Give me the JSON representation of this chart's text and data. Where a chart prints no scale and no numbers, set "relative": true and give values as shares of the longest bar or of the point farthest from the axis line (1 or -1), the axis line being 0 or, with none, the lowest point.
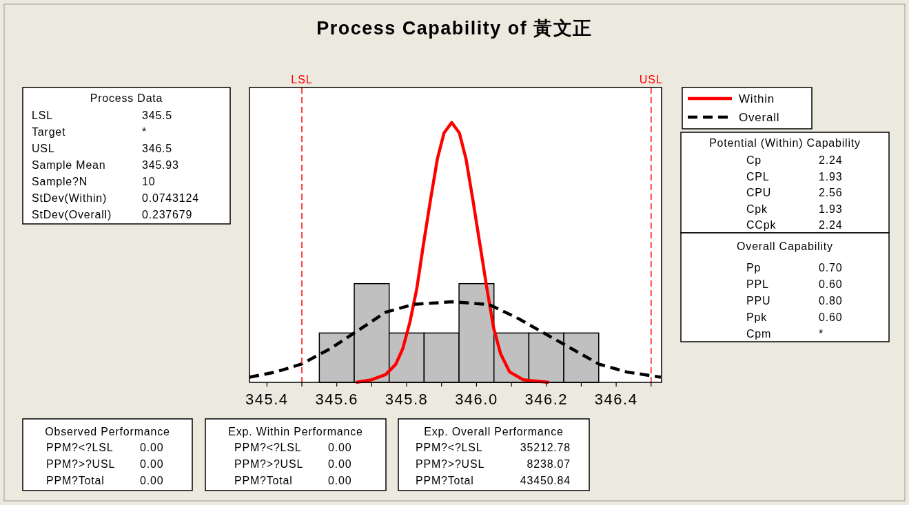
{
  "chart_data": {
    "type": "histogram",
    "title": "Process Capability of 黃文正",
    "relative": true,
    "bins": [
      345.55,
      345.65,
      345.75,
      345.85,
      345.95,
      346.05,
      346.15,
      346.25,
      346.35
    ],
    "values": [
      0.19,
      0.38,
      0.19,
      0.19,
      0.38,
      0.19,
      0.19,
      0.19
    ],
    "color": "#c0c0c0",
    "series": [
      {
        "name": "Within",
        "type": "line",
        "color": "#ff0000",
        "line_style": "solid",
        "x": [
          345.655,
          345.7,
          345.74,
          345.769,
          345.789,
          345.809,
          345.829,
          345.848,
          345.868,
          345.888,
          345.907,
          345.929,
          345.951,
          345.97,
          345.99,
          346.01,
          346.03,
          346.049,
          346.069,
          346.095,
          346.134,
          346.207
        ],
        "values": [
          0,
          0.01,
          0.03,
          0.07,
          0.13,
          0.23,
          0.36,
          0.53,
          0.7,
          0.86,
          0.96,
          1,
          0.96,
          0.86,
          0.7,
          0.53,
          0.36,
          0.21,
          0.11,
          0.04,
          0.01,
          0
        ]
      },
      {
        "name": "Overall",
        "type": "line",
        "color": "#000000",
        "line_style": "dashed",
        "x": [
          345.35,
          345.425,
          345.498,
          345.582,
          345.661,
          345.74,
          345.819,
          345.929,
          346.035,
          346.114,
          346.193,
          346.272,
          346.351,
          346.43,
          346.528
        ],
        "values": [
          0.02,
          0.04,
          0.07,
          0.13,
          0.2,
          0.27,
          0.3,
          0.31,
          0.3,
          0.25,
          0.19,
          0.13,
          0.07,
          0.04,
          0.02
        ]
      }
    ],
    "xlim": [
      345.35,
      346.53
    ],
    "xticks": [
      345.4,
      {
        "value": 345.5,
        "label": null
      },
      345.6,
      {
        "value": 345.7,
        "label": null
      },
      345.8,
      {
        "value": 345.9,
        "label": null
      },
      {
        "value": 346.0,
        "label": "346.0"
      },
      {
        "value": 346.1,
        "label": null
      },
      346.2,
      {
        "value": 346.3,
        "label": null
      },
      346.4,
      {
        "value": 346.5,
        "label": null
      }
    ],
    "ref_lines": [
      {
        "axis": "x",
        "value": 345.5,
        "label": "LSL",
        "color": "#ff0000",
        "line_style": "dashed"
      },
      {
        "axis": "x",
        "value": 346.5,
        "label": "USL",
        "color": "#ff0000",
        "line_style": "dashed"
      }
    ],
    "legend": "top right",
    "annotations": [
      "Process Data",
      "LSL",
      "345.5",
      "Target",
      "*",
      "USL",
      "346.5",
      "Sample Mean",
      "345.93",
      "Sample?N",
      "10",
      "StDev(Within)",
      "0.0743124",
      "StDev(Overall)",
      "0.237679",
      "Potential (Within) Capability",
      "Cp",
      "2.24",
      "CPL",
      "1.93",
      "CPU",
      "2.56",
      "Cpk",
      "1.93",
      "CCpk",
      "2.24",
      "Overall Capability",
      "Pp",
      "0.70",
      "PPL",
      "0.60",
      "PPU",
      "0.80",
      "Ppk",
      "0.60",
      "Cpm",
      "*",
      "Observed Performance",
      "PPM?<?LSL",
      "0.00",
      "PPM?>?USL",
      "0.00",
      "PPM?Total",
      "0.00",
      "Exp. Within Performance",
      "PPM?<?LSL",
      "0.00",
      "PPM?>?USL",
      "0.00",
      "PPM?Total",
      "0.00",
      "Exp. Overall Performance",
      "PPM?<?LSL",
      "35212.78",
      "PPM?>?USL",
      "8238.07",
      "PPM?Total",
      "43450.84"
    ]
  }
}
